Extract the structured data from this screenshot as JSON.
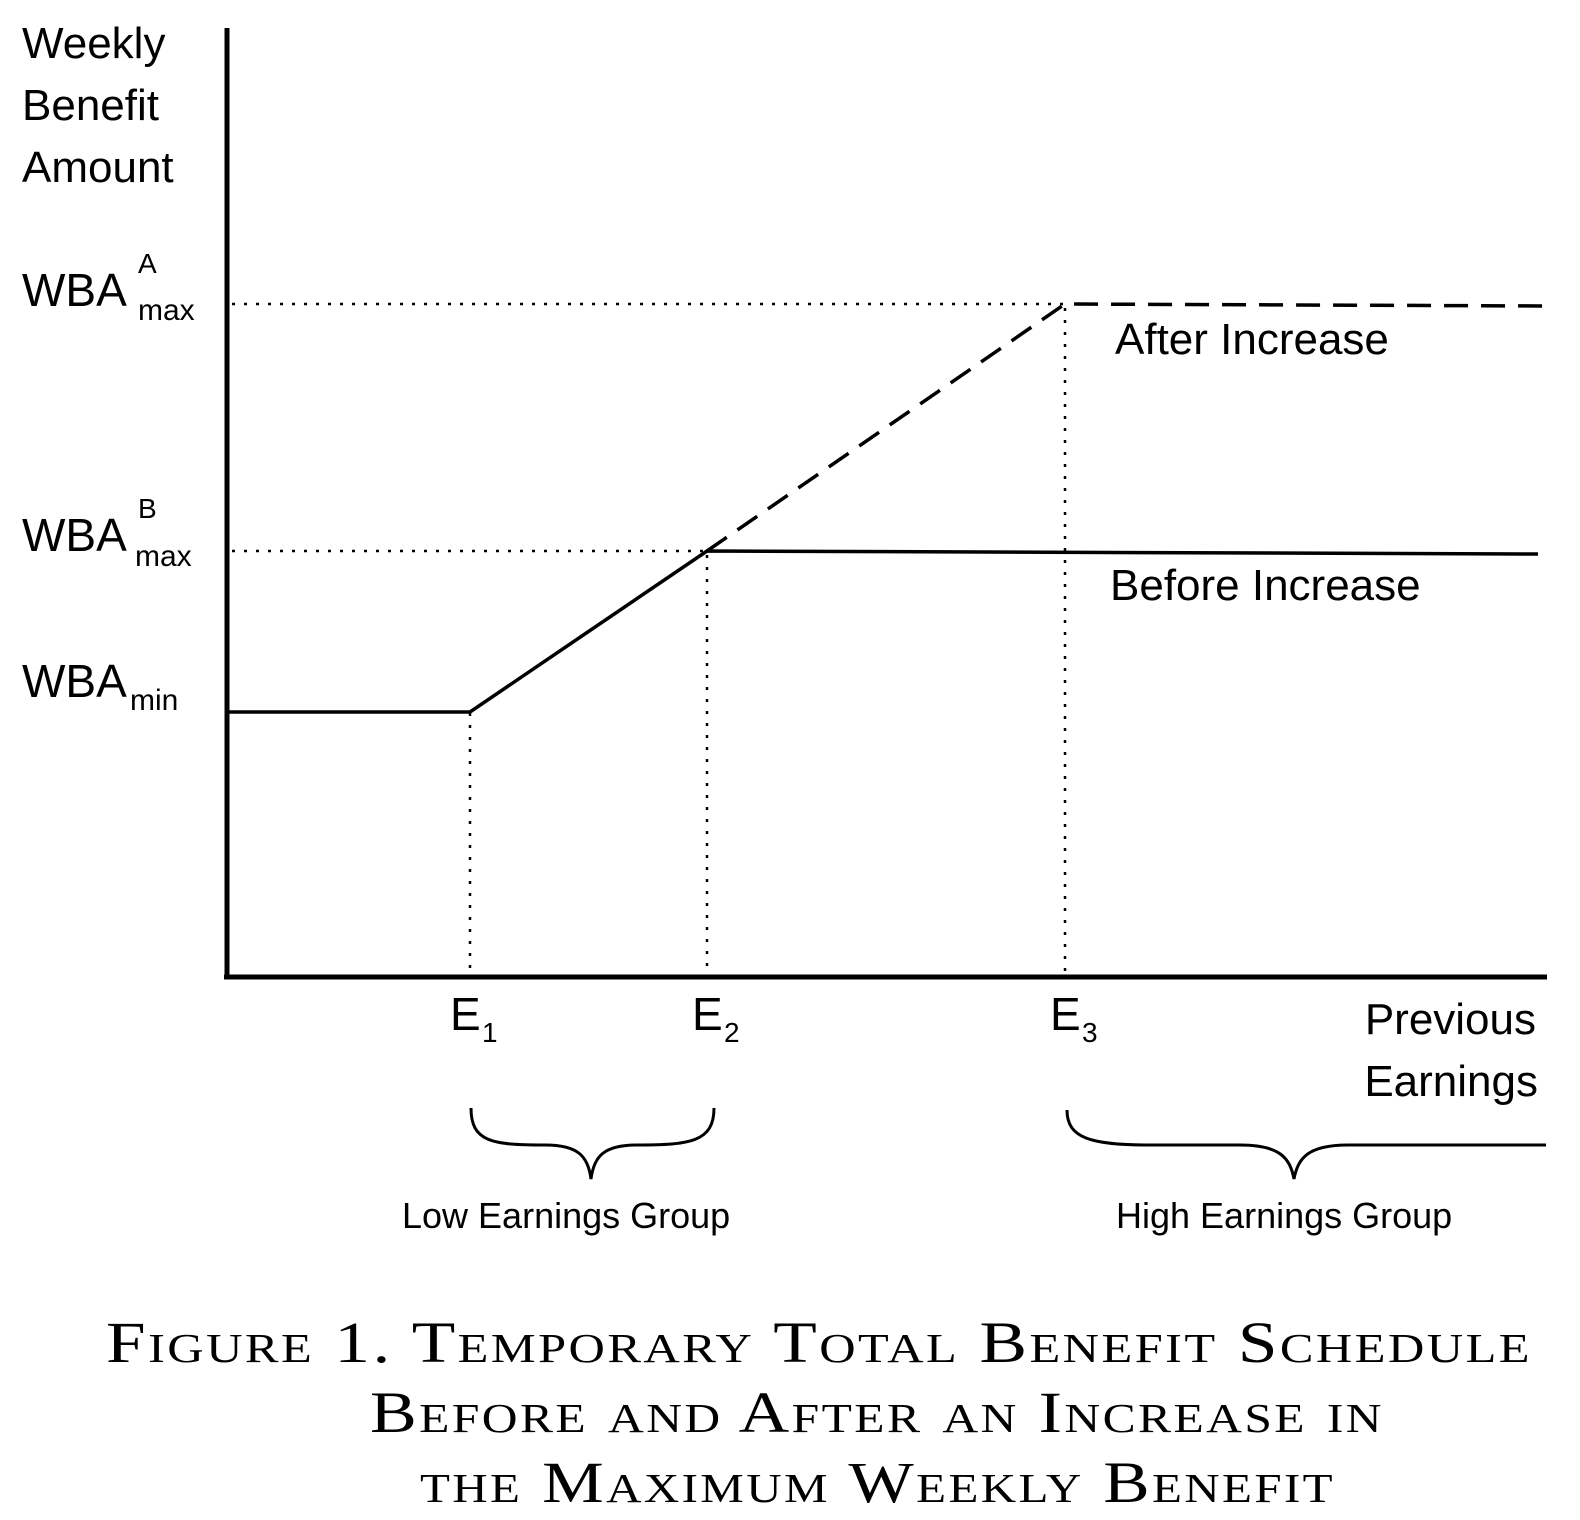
{
  "y_axis": {
    "label_lines": [
      "Weekly",
      "Benefit",
      "Amount"
    ]
  },
  "x_axis": {
    "label_lines": [
      "Previous",
      "Earnings"
    ]
  },
  "y_ticks": {
    "wba_max_a": {
      "main": "WBA",
      "sup": "A",
      "sub": "max"
    },
    "wba_max_b": {
      "main": "WBA",
      "sup": "B",
      "sub": "max"
    },
    "wba_min": {
      "main": "WBA",
      "sub": "min"
    }
  },
  "x_ticks": [
    {
      "main": "E",
      "sub": "1"
    },
    {
      "main": "E",
      "sub": "2"
    },
    {
      "main": "E",
      "sub": "3"
    }
  ],
  "curves": {
    "after": {
      "label": "After Increase",
      "style": "dashed"
    },
    "before": {
      "label": "Before Increase",
      "style": "solid"
    }
  },
  "groups": {
    "low": "Low Earnings Group",
    "high": "High Earnings Group"
  },
  "caption": {
    "line1": "Figure 1. Temporary Total Benefit Schedule",
    "line2": "Before and After an Increase in",
    "line3": "the Maximum Weekly Benefit"
  }
}
